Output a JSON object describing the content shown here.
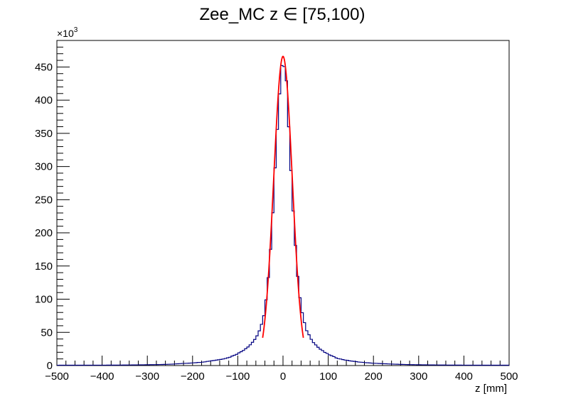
{
  "chart_data": {
    "type": "histogram",
    "title": "Zee_MC z  ∈ [75,100)",
    "xlabel": "z [mm]",
    "ylabel": "",
    "y_multiplier_label": "×10",
    "y_multiplier_exponent": "3",
    "xlim": [
      -500,
      500
    ],
    "ylim": [
      0,
      490
    ],
    "x_ticks": [
      -500,
      -400,
      -300,
      -200,
      -100,
      0,
      100,
      200,
      300,
      400,
      500
    ],
    "x_tick_labels": [
      "−500",
      "−400",
      "−300",
      "−200",
      "−100",
      "0",
      "100",
      "200",
      "300",
      "400",
      "500"
    ],
    "y_ticks": [
      0,
      50,
      100,
      150,
      200,
      250,
      300,
      350,
      400,
      450
    ],
    "y_tick_labels": [
      "0",
      "50",
      "100",
      "150",
      "200",
      "250",
      "300",
      "350",
      "400",
      "450"
    ],
    "bin_width": 5,
    "fit_range": [
      -45,
      45
    ],
    "series": [
      {
        "kind": "histogram",
        "color": "#000080",
        "points": [
          [
            -500,
            0.5
          ],
          [
            -400,
            0.6
          ],
          [
            -350,
            0.8
          ],
          [
            -300,
            1.2
          ],
          [
            -275,
            1.5
          ],
          [
            -250,
            2
          ],
          [
            -225,
            3
          ],
          [
            -200,
            4
          ],
          [
            -180,
            5
          ],
          [
            -160,
            7
          ],
          [
            -140,
            9
          ],
          [
            -120,
            12
          ],
          [
            -110,
            15
          ],
          [
            -100,
            18
          ],
          [
            -90,
            22
          ],
          [
            -80,
            27
          ],
          [
            -70,
            33
          ],
          [
            -60,
            42
          ],
          [
            -50,
            55
          ],
          [
            -40,
            85
          ],
          [
            -35,
            115
          ],
          [
            -30,
            150
          ],
          [
            -25,
            200
          ],
          [
            -20,
            260
          ],
          [
            -15,
            330
          ],
          [
            -10,
            395
          ],
          [
            -5,
            440
          ],
          [
            0,
            465
          ],
          [
            5,
            445
          ],
          [
            10,
            400
          ],
          [
            15,
            335
          ],
          [
            20,
            265
          ],
          [
            25,
            205
          ],
          [
            30,
            155
          ],
          [
            35,
            118
          ],
          [
            40,
            88
          ],
          [
            50,
            57
          ],
          [
            60,
            43
          ],
          [
            70,
            33
          ],
          [
            80,
            26
          ],
          [
            90,
            21
          ],
          [
            100,
            17
          ],
          [
            110,
            14
          ],
          [
            120,
            11
          ],
          [
            140,
            8
          ],
          [
            160,
            6
          ],
          [
            180,
            4.5
          ],
          [
            200,
            3.5
          ],
          [
            225,
            2.7
          ],
          [
            250,
            2
          ],
          [
            275,
            1.5
          ],
          [
            300,
            1.2
          ],
          [
            350,
            0.8
          ],
          [
            400,
            0.6
          ],
          [
            500,
            0.5
          ]
        ]
      },
      {
        "kind": "fit",
        "color": "#ff0000",
        "amplitude": 466,
        "mean": 0,
        "sigma": 20.5
      }
    ]
  }
}
